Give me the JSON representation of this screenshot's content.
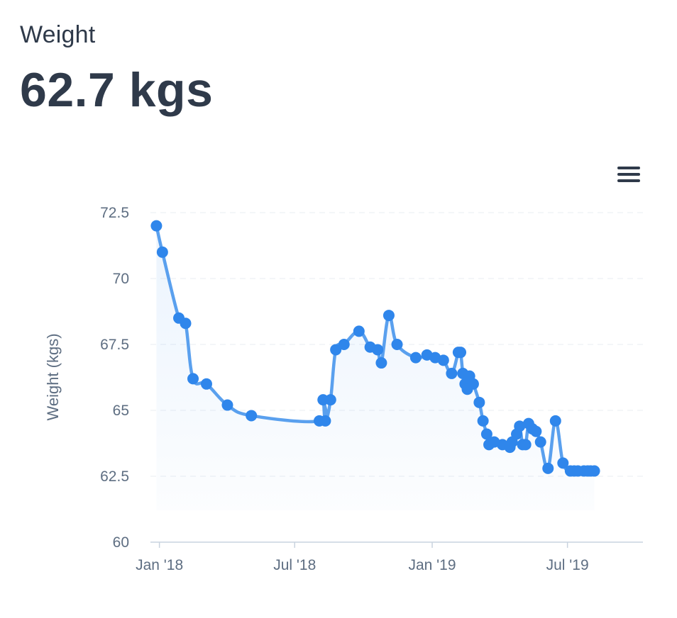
{
  "header": {
    "label": "Weight",
    "value": "62.7 kgs"
  },
  "menu_icon": "hamburger-menu-icon",
  "colors": {
    "line": "#5aa0ee",
    "marker": "#2f86eb",
    "text": "#2f3a4a",
    "axis_text": "#5e6e82"
  },
  "chart_data": {
    "type": "line",
    "title": "",
    "xlabel": "",
    "ylabel": "Weight (kgs)",
    "ylim": [
      60,
      72.5
    ],
    "yticks": [
      {
        "value": 72.5,
        "label": "72.5"
      },
      {
        "value": 70,
        "label": "70"
      },
      {
        "value": 67.5,
        "label": "67.5"
      },
      {
        "value": 65,
        "label": "65"
      },
      {
        "value": 62.5,
        "label": "62.5"
      },
      {
        "value": 60,
        "label": "60"
      }
    ],
    "xlim": [
      "2017-12-20",
      "2019-10-10"
    ],
    "xticks": [
      {
        "value": "2018-01-01",
        "label": "Jan '18"
      },
      {
        "value": "2018-07-01",
        "label": "Jul '18"
      },
      {
        "value": "2019-01-01",
        "label": "Jan '19"
      },
      {
        "value": "2019-07-01",
        "label": "Jul '19"
      }
    ],
    "grid": true,
    "legend": "none",
    "series": [
      {
        "x": [
          "2017-12-28",
          "2018-01-05",
          "2018-01-27",
          "2018-02-05",
          "2018-02-15",
          "2018-03-05",
          "2018-04-02",
          "2018-05-04",
          "2018-08-03",
          "2018-08-08",
          "2018-08-11",
          "2018-08-18",
          "2018-08-25",
          "2018-09-05",
          "2018-09-25",
          "2018-10-10",
          "2018-10-20",
          "2018-10-25",
          "2018-11-04",
          "2018-11-15",
          "2018-12-10",
          "2018-12-25",
          "2019-01-05",
          "2019-01-16",
          "2019-01-27",
          "2019-02-05",
          "2019-02-08",
          "2019-02-11",
          "2019-02-14",
          "2019-02-17",
          "2019-02-20",
          "2019-02-25",
          "2019-03-05",
          "2019-03-10",
          "2019-03-15",
          "2019-03-18",
          "2019-03-25",
          "2019-04-05",
          "2019-04-15",
          "2019-04-18",
          "2019-04-24",
          "2019-04-28",
          "2019-05-02",
          "2019-05-06",
          "2019-05-10",
          "2019-05-15",
          "2019-05-20",
          "2019-05-26",
          "2019-06-05",
          "2019-06-15",
          "2019-06-25",
          "2019-07-05",
          "2019-07-10",
          "2019-07-15",
          "2019-07-23",
          "2019-07-28",
          "2019-08-01",
          "2019-08-06"
        ],
        "y": [
          72.0,
          71.0,
          68.5,
          68.3,
          66.2,
          66.0,
          65.2,
          64.8,
          64.6,
          65.4,
          64.6,
          65.4,
          67.3,
          67.5,
          68.0,
          67.4,
          67.3,
          66.8,
          68.6,
          67.5,
          67.0,
          67.1,
          67.0,
          66.9,
          66.4,
          67.2,
          67.2,
          66.4,
          66.0,
          65.8,
          66.3,
          66.0,
          65.3,
          64.6,
          64.1,
          63.7,
          63.8,
          63.7,
          63.6,
          63.8,
          64.1,
          64.4,
          63.7,
          63.7,
          64.5,
          64.3,
          64.2,
          63.8,
          62.8,
          64.6,
          63.0,
          62.7,
          62.7,
          62.7,
          62.7,
          62.7,
          62.7,
          62.7
        ]
      }
    ]
  }
}
